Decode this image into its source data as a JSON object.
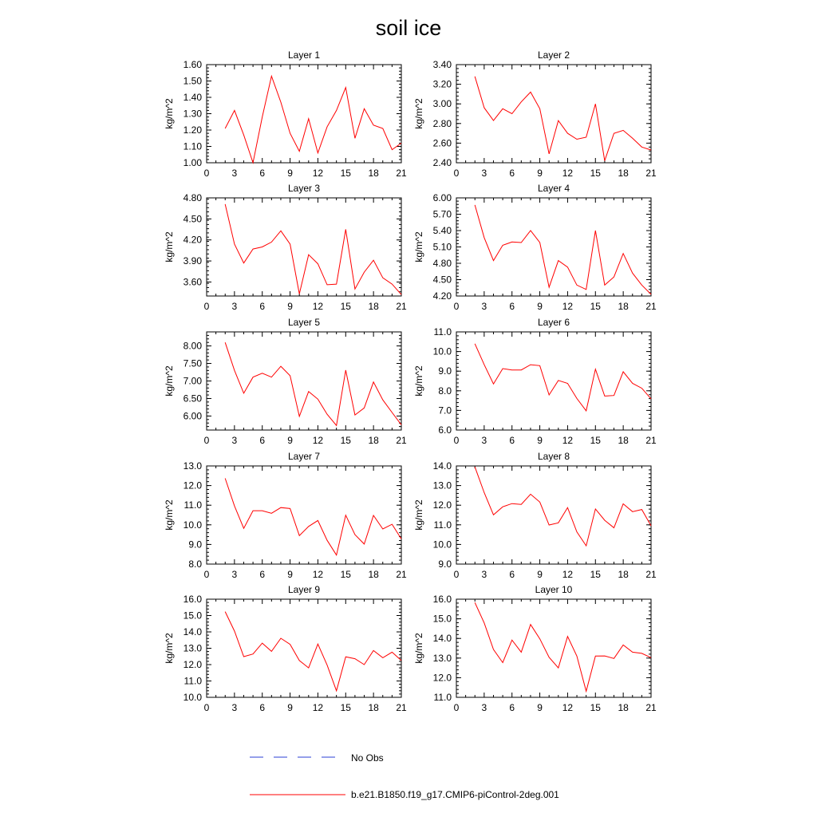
{
  "title": "soil ice",
  "colors": {
    "model_line": "#ff0000",
    "obs_line": "#2b3fd6",
    "axis": "#000000"
  },
  "legend": {
    "items": [
      {
        "label": "No Obs",
        "style": "dashed",
        "color": "#2b3fd6"
      },
      {
        "label": "b.e21.B1850.f19_g17.CMIP6-piControl-2deg.001",
        "style": "solid",
        "color": "#ff0000"
      }
    ]
  },
  "chart_data": [
    {
      "type": "line",
      "title": "Layer 1",
      "ylabel": "kg/m^2",
      "xlim": [
        0,
        21
      ],
      "ylim": [
        1.0,
        1.6
      ],
      "xticks": [
        0,
        3,
        6,
        9,
        12,
        15,
        18,
        21
      ],
      "yticks": [
        "1.00",
        "1.10",
        "1.20",
        "1.30",
        "1.40",
        "1.50",
        "1.60"
      ],
      "x": [
        2,
        3,
        4,
        5,
        6,
        7,
        8,
        9,
        10,
        11,
        12,
        13,
        14,
        15,
        16,
        17,
        18,
        19,
        20,
        21
      ],
      "series": [
        {
          "values": [
            1.21,
            1.32,
            1.17,
            1.0,
            1.28,
            1.53,
            1.37,
            1.18,
            1.07,
            1.27,
            1.06,
            1.22,
            1.32,
            1.46,
            1.15,
            1.33,
            1.23,
            1.21,
            1.08,
            1.12
          ]
        }
      ]
    },
    {
      "type": "line",
      "title": "Layer 2",
      "ylabel": "kg/m^2",
      "xlim": [
        0,
        21
      ],
      "ylim": [
        2.4,
        3.4
      ],
      "xticks": [
        0,
        3,
        6,
        9,
        12,
        15,
        18,
        21
      ],
      "yticks": [
        "2.40",
        "2.60",
        "2.80",
        "3.00",
        "3.20",
        "3.40"
      ],
      "x": [
        2,
        3,
        4,
        5,
        6,
        7,
        8,
        9,
        10,
        11,
        12,
        13,
        14,
        15,
        16,
        17,
        18,
        19,
        20,
        21
      ],
      "series": [
        {
          "values": [
            3.28,
            2.96,
            2.83,
            2.95,
            2.9,
            3.02,
            3.12,
            2.95,
            2.49,
            2.83,
            2.7,
            2.64,
            2.66,
            3.0,
            2.42,
            2.7,
            2.73,
            2.65,
            2.56,
            2.53
          ]
        }
      ]
    },
    {
      "type": "line",
      "title": "Layer 3",
      "ylabel": "kg/m^2",
      "xlim": [
        0,
        21
      ],
      "ylim": [
        3.4,
        4.8
      ],
      "xticks": [
        0,
        3,
        6,
        9,
        12,
        15,
        18,
        21
      ],
      "yticks": [
        "3.60",
        "3.90",
        "4.20",
        "4.50",
        "4.80"
      ],
      "x": [
        2,
        3,
        4,
        5,
        6,
        7,
        8,
        9,
        10,
        11,
        12,
        13,
        14,
        15,
        16,
        17,
        18,
        19,
        20,
        21
      ],
      "series": [
        {
          "values": [
            4.71,
            4.14,
            3.87,
            4.07,
            4.1,
            4.17,
            4.33,
            4.14,
            3.43,
            3.99,
            3.86,
            3.56,
            3.57,
            4.35,
            3.5,
            3.74,
            3.91,
            3.66,
            3.57,
            3.42
          ]
        }
      ]
    },
    {
      "type": "line",
      "title": "Layer 4",
      "ylabel": "kg/m^2",
      "xlim": [
        0,
        21
      ],
      "ylim": [
        4.2,
        6.0
      ],
      "xticks": [
        0,
        3,
        6,
        9,
        12,
        15,
        18,
        21
      ],
      "yticks": [
        "4.20",
        "4.50",
        "4.80",
        "5.10",
        "5.40",
        "5.70",
        "6.00"
      ],
      "x": [
        2,
        3,
        4,
        5,
        6,
        7,
        8,
        9,
        10,
        11,
        12,
        13,
        14,
        15,
        16,
        17,
        18,
        19,
        20,
        21
      ],
      "series": [
        {
          "values": [
            5.87,
            5.27,
            4.85,
            5.13,
            5.19,
            5.18,
            5.4,
            5.18,
            4.36,
            4.85,
            4.73,
            4.4,
            4.32,
            5.4,
            4.4,
            4.55,
            4.98,
            4.62,
            4.4,
            4.23
          ]
        }
      ]
    },
    {
      "type": "line",
      "title": "Layer 5",
      "ylabel": "kg/m^2",
      "xlim": [
        0,
        21
      ],
      "ylim": [
        5.6,
        8.4
      ],
      "xticks": [
        0,
        3,
        6,
        9,
        12,
        15,
        18,
        21
      ],
      "yticks": [
        "6.00",
        "6.50",
        "7.00",
        "7.50",
        "8.00"
      ],
      "x": [
        2,
        3,
        4,
        5,
        6,
        7,
        8,
        9,
        10,
        11,
        12,
        13,
        14,
        15,
        16,
        17,
        18,
        19,
        20,
        21
      ],
      "series": [
        {
          "values": [
            8.1,
            7.3,
            6.65,
            7.11,
            7.22,
            7.11,
            7.42,
            7.15,
            5.99,
            6.7,
            6.48,
            6.05,
            5.73,
            7.31,
            6.03,
            6.23,
            6.97,
            6.46,
            6.1,
            5.75
          ]
        }
      ]
    },
    {
      "type": "line",
      "title": "Layer 6",
      "ylabel": "kg/m^2",
      "xlim": [
        0,
        21
      ],
      "ylim": [
        6.0,
        11.0
      ],
      "xticks": [
        0,
        3,
        6,
        9,
        12,
        15,
        18,
        21
      ],
      "yticks": [
        "6.0",
        "7.0",
        "8.0",
        "9.0",
        "10.0",
        "11.0"
      ],
      "x": [
        2,
        3,
        4,
        5,
        6,
        7,
        8,
        9,
        10,
        11,
        12,
        13,
        14,
        15,
        16,
        17,
        18,
        19,
        20,
        21
      ],
      "series": [
        {
          "values": [
            10.4,
            9.33,
            8.35,
            9.13,
            9.06,
            9.06,
            9.33,
            9.28,
            7.79,
            8.53,
            8.38,
            7.61,
            6.98,
            9.1,
            7.73,
            7.76,
            8.97,
            8.38,
            8.13,
            7.59
          ]
        }
      ]
    },
    {
      "type": "line",
      "title": "Layer 7",
      "ylabel": "kg/m^2",
      "xlim": [
        0,
        21
      ],
      "ylim": [
        8.0,
        13.0
      ],
      "xticks": [
        0,
        3,
        6,
        9,
        12,
        15,
        18,
        21
      ],
      "yticks": [
        "8.0",
        "9.0",
        "10.0",
        "11.0",
        "12.0",
        "13.0"
      ],
      "x": [
        2,
        3,
        4,
        5,
        6,
        7,
        8,
        9,
        10,
        11,
        12,
        13,
        14,
        15,
        16,
        17,
        18,
        19,
        20,
        21
      ],
      "series": [
        {
          "values": [
            12.37,
            10.96,
            9.82,
            10.72,
            10.72,
            10.59,
            10.88,
            10.83,
            9.45,
            9.92,
            10.22,
            9.21,
            8.46,
            10.49,
            9.5,
            9.02,
            10.48,
            9.79,
            10.03,
            9.28
          ]
        }
      ]
    },
    {
      "type": "line",
      "title": "Layer 8",
      "ylabel": "kg/m^2",
      "xlim": [
        0,
        21
      ],
      "ylim": [
        9.0,
        14.0
      ],
      "xticks": [
        0,
        3,
        6,
        9,
        12,
        15,
        18,
        21
      ],
      "yticks": [
        "9.0",
        "10.0",
        "11.0",
        "12.0",
        "13.0",
        "14.0"
      ],
      "x": [
        2,
        3,
        4,
        5,
        6,
        7,
        8,
        9,
        10,
        11,
        12,
        13,
        14,
        15,
        16,
        17,
        18,
        19,
        20,
        21
      ],
      "series": [
        {
          "values": [
            13.95,
            12.64,
            11.51,
            11.92,
            12.08,
            12.04,
            12.56,
            12.16,
            10.99,
            11.1,
            11.88,
            10.64,
            9.93,
            11.81,
            11.23,
            10.85,
            12.07,
            11.67,
            11.78,
            10.95
          ]
        }
      ]
    },
    {
      "type": "line",
      "title": "Layer 9",
      "ylabel": "kg/m^2",
      "xlim": [
        0,
        21
      ],
      "ylim": [
        10.0,
        16.0
      ],
      "xticks": [
        0,
        3,
        6,
        9,
        12,
        15,
        18,
        21
      ],
      "yticks": [
        "10.0",
        "11.0",
        "12.0",
        "13.0",
        "14.0",
        "15.0",
        "16.0"
      ],
      "x": [
        2,
        3,
        4,
        5,
        6,
        7,
        8,
        9,
        10,
        11,
        12,
        13,
        14,
        15,
        16,
        17,
        18,
        19,
        20,
        21
      ],
      "series": [
        {
          "values": [
            15.24,
            14.05,
            12.49,
            12.65,
            13.31,
            12.81,
            13.61,
            13.24,
            12.25,
            11.8,
            13.26,
            11.97,
            10.4,
            12.48,
            12.36,
            12.0,
            12.86,
            12.42,
            12.76,
            12.25
          ]
        }
      ]
    },
    {
      "type": "line",
      "title": "Layer 10",
      "ylabel": "kg/m^2",
      "xlim": [
        0,
        21
      ],
      "ylim": [
        11.0,
        16.0
      ],
      "xticks": [
        0,
        3,
        6,
        9,
        12,
        15,
        18,
        21
      ],
      "yticks": [
        "11.0",
        "12.0",
        "13.0",
        "14.0",
        "15.0",
        "16.0"
      ],
      "x": [
        2,
        3,
        4,
        5,
        6,
        7,
        8,
        9,
        10,
        11,
        12,
        13,
        14,
        15,
        16,
        17,
        18,
        19,
        20,
        21
      ],
      "series": [
        {
          "values": [
            15.83,
            14.79,
            13.44,
            12.77,
            13.92,
            13.3,
            14.71,
            13.98,
            13.04,
            12.5,
            14.1,
            13.1,
            11.31,
            13.1,
            13.11,
            12.98,
            13.67,
            13.3,
            13.24,
            13.02
          ]
        }
      ]
    }
  ]
}
